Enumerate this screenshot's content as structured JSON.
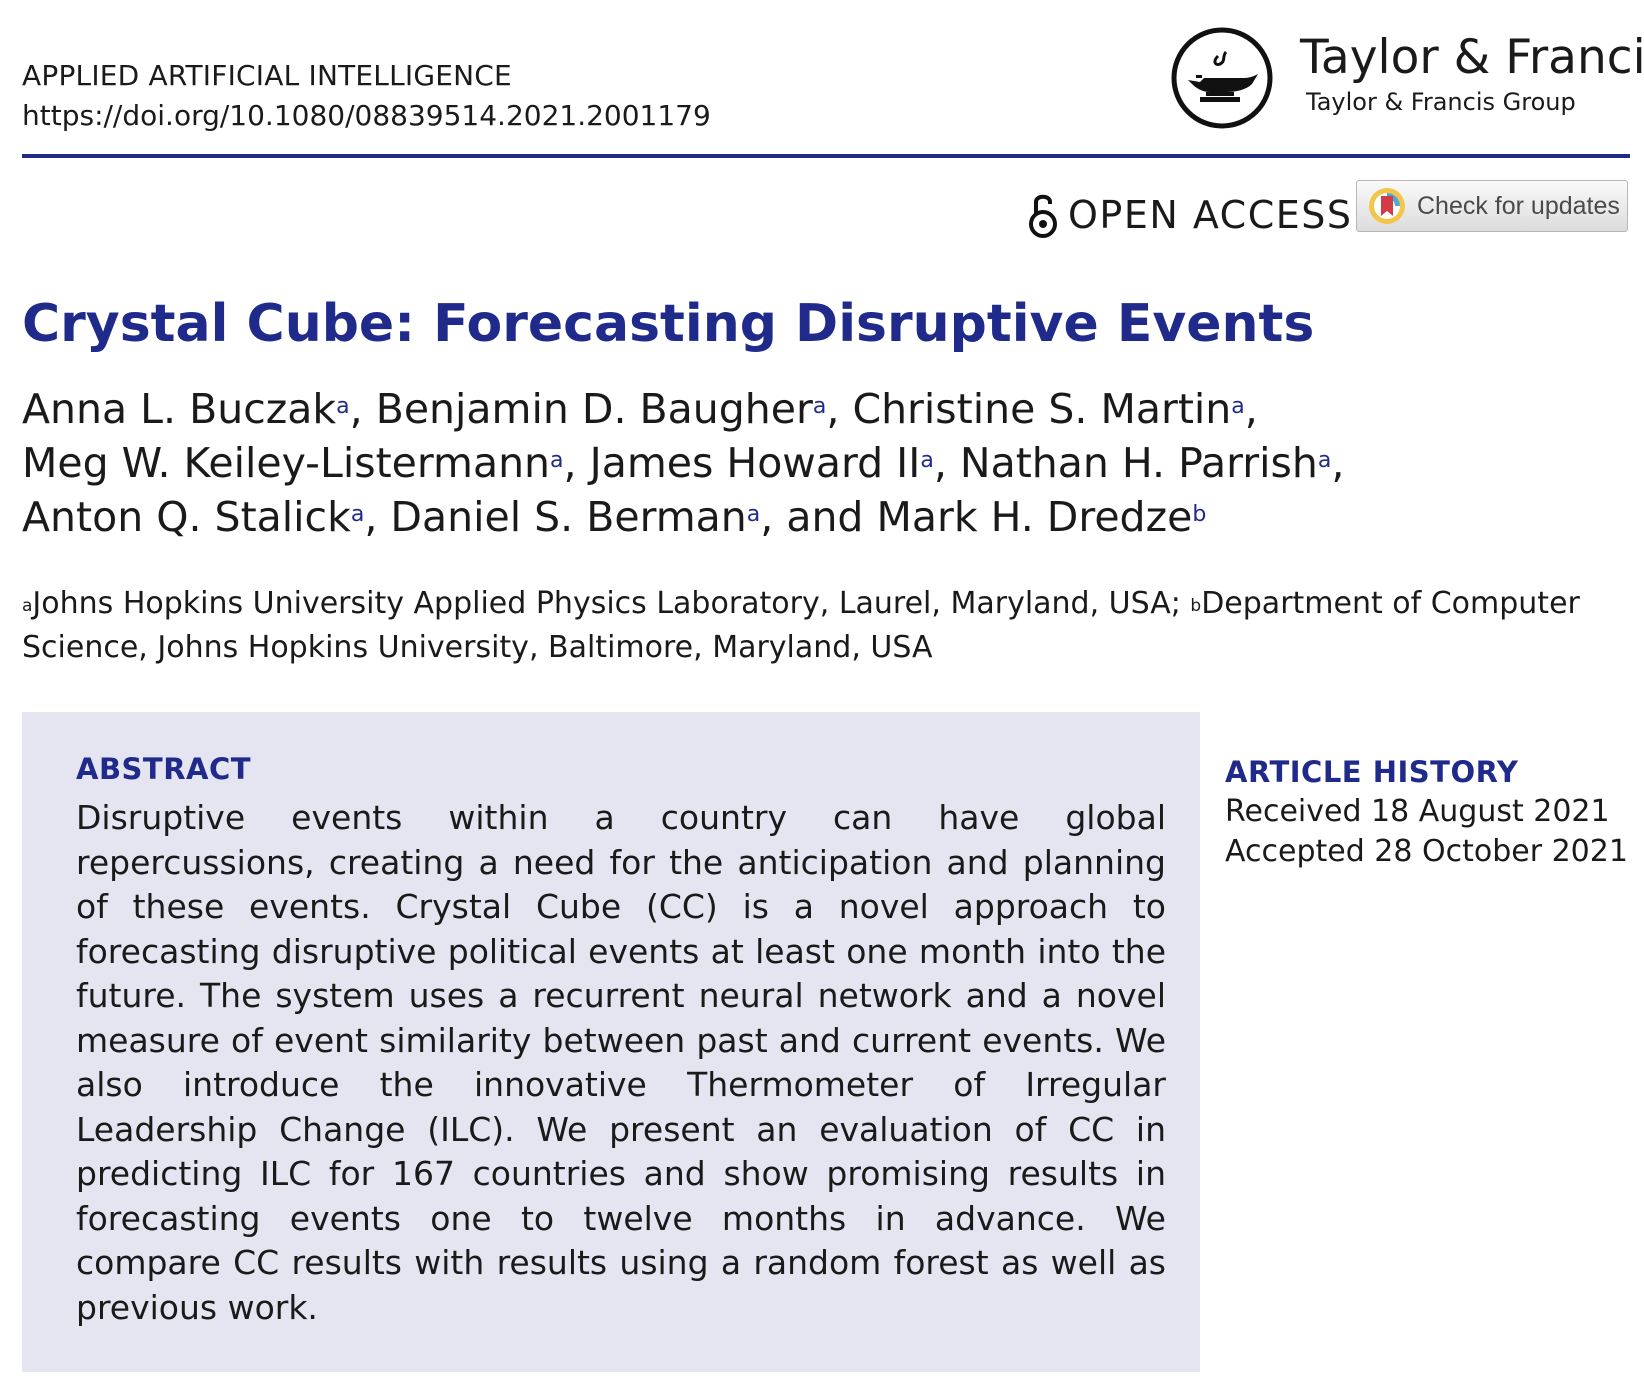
{
  "header": {
    "journal": "APPLIED ARTIFICIAL INTELLIGENCE",
    "doi": "https://doi.org/10.1080/08839514.2021.2001179"
  },
  "publisher": {
    "name": "Taylor & Francis",
    "group": "Taylor & Francis Group"
  },
  "open_access": {
    "label": "OPEN ACCESS"
  },
  "updates_button": {
    "label": "Check for updates"
  },
  "article": {
    "title": "Crystal Cube: Forecasting Disruptive Events",
    "authors": [
      {
        "name": "Anna L. Buczak",
        "aff": "a"
      },
      {
        "name": "Benjamin D. Baugher",
        "aff": "a"
      },
      {
        "name": "Christine S. Martin",
        "aff": "a"
      },
      {
        "name": "Meg W. Keiley-Listermann",
        "aff": "a"
      },
      {
        "name": "James Howard II",
        "aff": "a"
      },
      {
        "name": "Nathan H. Parrish",
        "aff": "a"
      },
      {
        "name": "Anton Q. Stalick",
        "aff": "a"
      },
      {
        "name": "Daniel S. Berman",
        "aff": "a"
      },
      {
        "name": "Mark H. Dredze",
        "aff": "b"
      }
    ],
    "affiliations": [
      {
        "mark": "a",
        "text": "Johns Hopkins University Applied Physics Laboratory, Laurel, Maryland, USA;"
      },
      {
        "mark": "b",
        "text": "Department of Computer Science, Johns Hopkins University, Baltimore, Maryland, USA"
      }
    ]
  },
  "abstract": {
    "heading": "ABSTRACT",
    "text": "Disruptive events within a country can have global repercussions, creating a need for the anticipation and planning of these events. Crystal Cube (CC) is a novel approach to forecasting disruptive political events at least one month into the future. The system uses a recurrent neural network and a novel measure of event similarity between past and current events. We also introduce the innovative Thermometer of Irregular Leadership Change (ILC). We present an evaluation of CC in predicting ILC for 167 countries and show promising results in forecasting events one to twelve months in advance. We compare CC results with results using a random forest as well as previous work."
  },
  "history": {
    "heading": "ARTICLE HISTORY",
    "received": "Received 18 August 2021",
    "accepted": "Accepted 28 October 2021"
  },
  "colors": {
    "accent": "#1f2a8a",
    "abstract_bg": "#e4e5f0"
  }
}
